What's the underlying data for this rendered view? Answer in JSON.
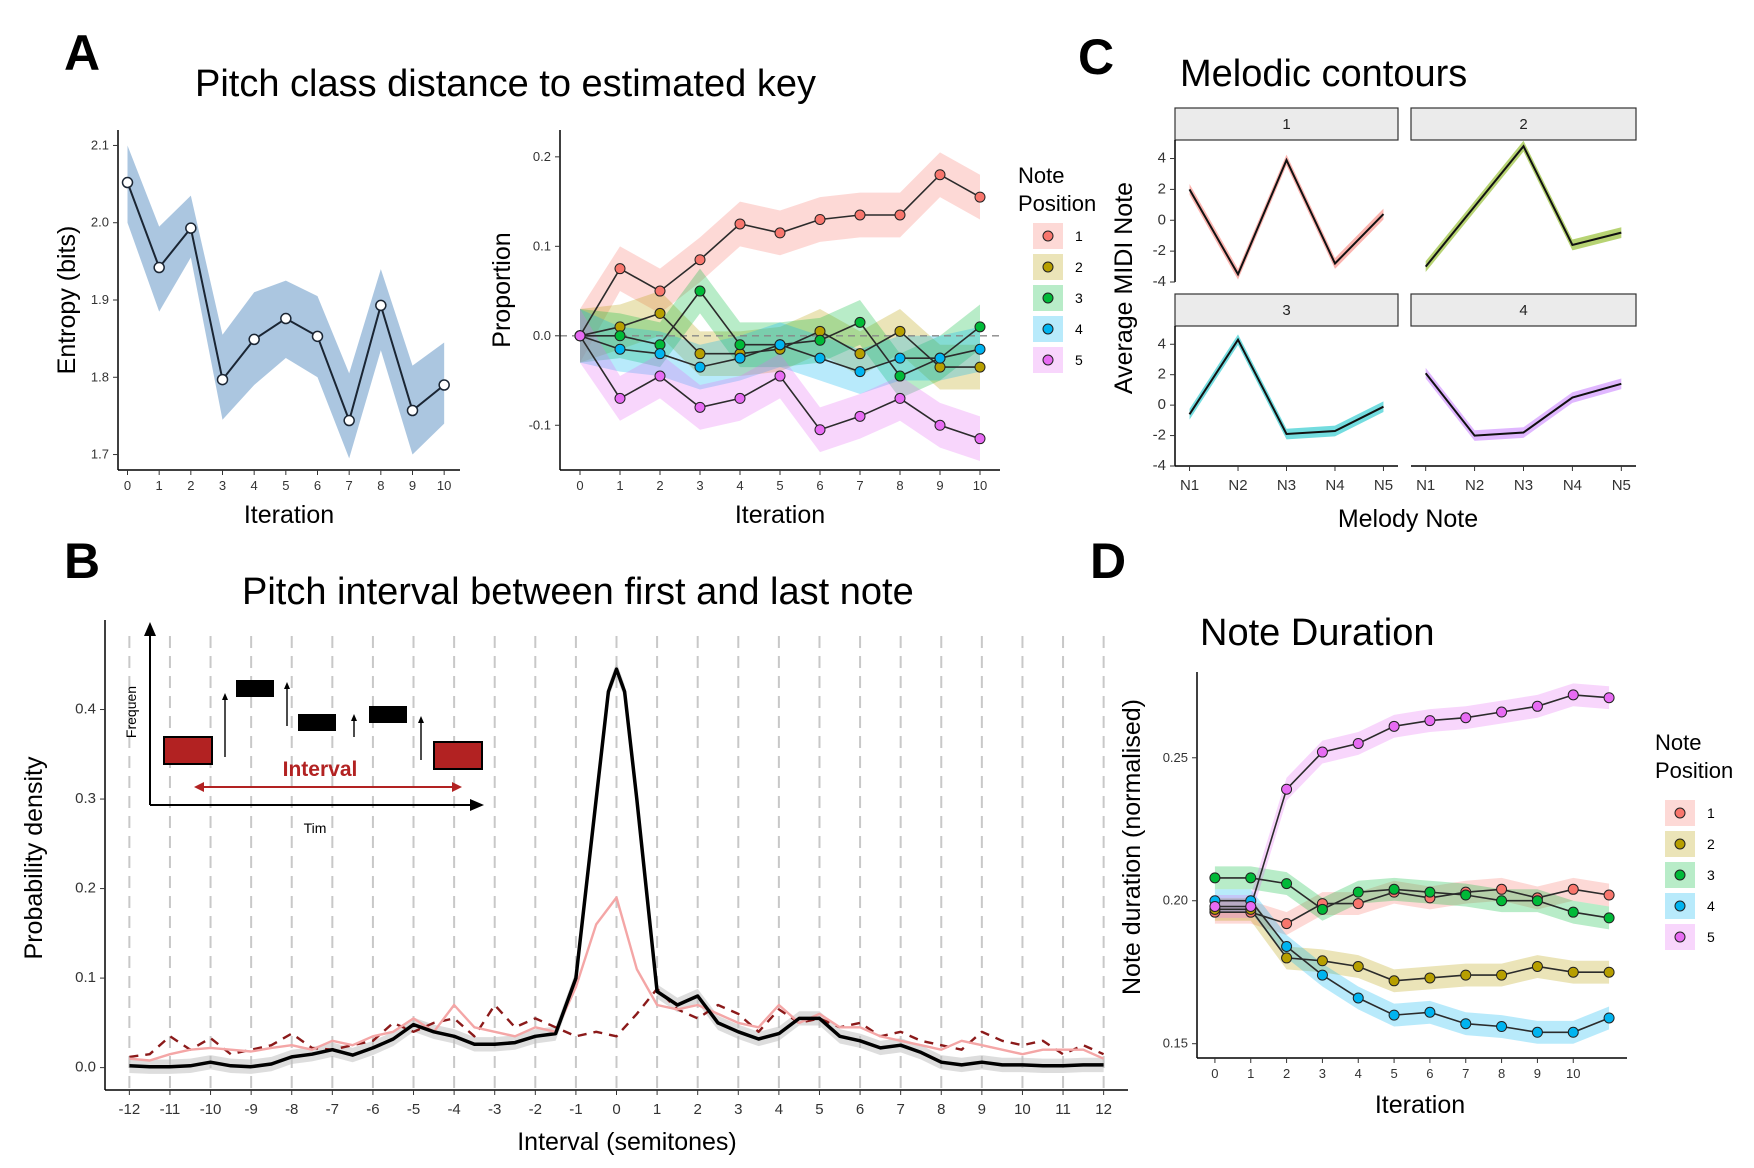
{
  "panels": {
    "A": {
      "letter": "A",
      "title": "Pitch class distance to estimated key"
    },
    "B": {
      "letter": "B",
      "title": "Pitch interval between first and last note"
    },
    "C": {
      "letter": "C",
      "title": "Melodic contours"
    },
    "D": {
      "letter": "D",
      "title": "Note Duration"
    }
  },
  "colors": {
    "pos1": "#F8766D",
    "pos2": "#B79F00",
    "pos3": "#00BA38",
    "pos4": "#00B4F0",
    "pos5": "#E76BF3",
    "entropy_band": "#8FB3D5",
    "dashed_red": "#8B1A1A",
    "pink": "#F4A6A6",
    "black": "#000000",
    "ribbon": "#9CD79B"
  },
  "chart_data": [
    {
      "id": "A-left",
      "type": "line",
      "xlabel": "Iteration",
      "ylabel": "Entropy (bits)",
      "x": [
        0,
        1,
        2,
        3,
        4,
        5,
        6,
        7,
        8,
        9,
        10
      ],
      "xticks": [
        "0",
        "1",
        "2",
        "3",
        "4",
        "5",
        "6",
        "7",
        "8",
        "9",
        "10"
      ],
      "yticks": [
        "1.7",
        "1.8",
        "1.9",
        "2.0",
        "2.1"
      ],
      "ylim": [
        1.68,
        2.12
      ],
      "series": [
        {
          "values": [
            2.052,
            1.942,
            1.993,
            1.797,
            1.849,
            1.876,
            1.853,
            1.744,
            1.893,
            1.757,
            1.79
          ],
          "lower": [
            2.0,
            1.885,
            1.955,
            1.745,
            1.79,
            1.825,
            1.8,
            1.695,
            1.835,
            1.7,
            1.74
          ],
          "upper": [
            2.1,
            1.995,
            2.035,
            1.855,
            1.91,
            1.925,
            1.905,
            1.805,
            1.94,
            1.815,
            1.845
          ]
        }
      ]
    },
    {
      "id": "A-right",
      "type": "line",
      "xlabel": "Iteration",
      "ylabel": "Proportion",
      "legend_title": [
        "Note",
        "Position"
      ],
      "legend_keys": [
        "1",
        "2",
        "3",
        "4",
        "5"
      ],
      "x": [
        0,
        1,
        2,
        3,
        4,
        5,
        6,
        7,
        8,
        9,
        10
      ],
      "xticks": [
        "0",
        "1",
        "2",
        "3",
        "4",
        "5",
        "6",
        "7",
        "8",
        "9",
        "10"
      ],
      "yticks": [
        "-0.1",
        "0.0",
        "0.1",
        "0.2"
      ],
      "ylim": [
        -0.15,
        0.23
      ],
      "band": 0.025,
      "series": [
        {
          "name": "1",
          "values": [
            0.0,
            0.075,
            0.05,
            0.085,
            0.125,
            0.115,
            0.13,
            0.135,
            0.135,
            0.18,
            0.155
          ]
        },
        {
          "name": "2",
          "values": [
            0.0,
            0.01,
            0.025,
            -0.02,
            -0.02,
            -0.015,
            0.005,
            -0.02,
            0.005,
            -0.035,
            -0.035
          ]
        },
        {
          "name": "3",
          "values": [
            0.0,
            0.0,
            -0.01,
            0.05,
            -0.01,
            -0.01,
            -0.005,
            0.015,
            -0.045,
            -0.025,
            0.01
          ]
        },
        {
          "name": "4",
          "values": [
            0.0,
            -0.015,
            -0.02,
            -0.035,
            -0.025,
            -0.01,
            -0.025,
            -0.04,
            -0.025,
            -0.025,
            -0.015
          ]
        },
        {
          "name": "5",
          "values": [
            0.0,
            -0.07,
            -0.045,
            -0.08,
            -0.07,
            -0.045,
            -0.105,
            -0.09,
            -0.07,
            -0.1,
            -0.115
          ]
        }
      ]
    },
    {
      "id": "B",
      "type": "line",
      "xlabel": "Interval (semitones)",
      "ylabel": "Probability density",
      "xlim": [
        -12.6,
        12.6
      ],
      "ylim": [
        -0.025,
        0.5
      ],
      "xticks": [
        "-12",
        "-11",
        "-10",
        "-9",
        "-8",
        "-7",
        "-6",
        "-5",
        "-4",
        "-3",
        "-2",
        "-1",
        "0",
        "1",
        "2",
        "3",
        "4",
        "5",
        "6",
        "7",
        "8",
        "9",
        "10",
        "11",
        "12"
      ],
      "yticks": [
        "0.0",
        "0.1",
        "0.2",
        "0.3",
        "0.4"
      ],
      "inset": {
        "ylabel": "Frequen",
        "xlabel": "Tim",
        "interval_label": "Interval"
      },
      "series": [
        {
          "style": "black",
          "x": [
            -12,
            -11.5,
            -11,
            -10.5,
            -10,
            -9.5,
            -9,
            -8.5,
            -8,
            -7.5,
            -7,
            -6.5,
            -6,
            -5.5,
            -5,
            -4.5,
            -4,
            -3.5,
            -3,
            -2.5,
            -2,
            -1.5,
            -1,
            -0.5,
            -0.2,
            0,
            0.2,
            0.5,
            1,
            1.5,
            2,
            2.5,
            3,
            3.5,
            4,
            4.5,
            5,
            5.5,
            6,
            6.5,
            7,
            7.5,
            8,
            8.5,
            9,
            9.5,
            10,
            10.5,
            11,
            11.5,
            12
          ],
          "values": [
            0.002,
            0.001,
            0.001,
            0.002,
            0.006,
            0.002,
            0.001,
            0.004,
            0.012,
            0.015,
            0.02,
            0.014,
            0.022,
            0.032,
            0.048,
            0.04,
            0.035,
            0.026,
            0.026,
            0.028,
            0.035,
            0.038,
            0.1,
            0.3,
            0.42,
            0.445,
            0.42,
            0.3,
            0.085,
            0.07,
            0.08,
            0.05,
            0.04,
            0.032,
            0.038,
            0.055,
            0.055,
            0.035,
            0.03,
            0.022,
            0.025,
            0.017,
            0.006,
            0.003,
            0.006,
            0.003,
            0.003,
            0.002,
            0.002,
            0.003,
            0.003
          ]
        },
        {
          "style": "pink",
          "x": [
            -12,
            -11.5,
            -11,
            -10.5,
            -10,
            -9.5,
            -9,
            -8.5,
            -8,
            -7.5,
            -7,
            -6.5,
            -6,
            -5.5,
            -5,
            -4.5,
            -4,
            -3.5,
            -3,
            -2.5,
            -2,
            -1.5,
            -1,
            -0.5,
            0,
            0.5,
            1,
            1.5,
            2,
            2.5,
            3,
            3.5,
            4,
            4.5,
            5,
            5.5,
            6,
            6.5,
            7,
            7.5,
            8,
            8.5,
            9,
            9.5,
            10,
            10.5,
            11,
            11.5,
            12
          ],
          "values": [
            0.01,
            0.008,
            0.015,
            0.02,
            0.022,
            0.02,
            0.018,
            0.022,
            0.025,
            0.02,
            0.03,
            0.025,
            0.035,
            0.04,
            0.055,
            0.04,
            0.07,
            0.045,
            0.04,
            0.035,
            0.045,
            0.04,
            0.09,
            0.16,
            0.19,
            0.11,
            0.07,
            0.065,
            0.07,
            0.06,
            0.05,
            0.045,
            0.07,
            0.05,
            0.06,
            0.045,
            0.045,
            0.035,
            0.03,
            0.025,
            0.02,
            0.03,
            0.025,
            0.02,
            0.015,
            0.02,
            0.02,
            0.02,
            0.01
          ]
        },
        {
          "style": "dashed",
          "x": [
            -12,
            -11.5,
            -11,
            -10.5,
            -10,
            -9.5,
            -9,
            -8.5,
            -8,
            -7.5,
            -7,
            -6.5,
            -6,
            -5.5,
            -5,
            -4.5,
            -4,
            -3.5,
            -3,
            -2.5,
            -2,
            -1.5,
            -1,
            -0.5,
            0,
            0.5,
            1,
            1.5,
            2,
            2.5,
            3,
            3.5,
            4,
            4.5,
            5,
            5.5,
            6,
            6.5,
            7,
            7.5,
            8,
            8.5,
            9,
            9.5,
            10,
            10.5,
            11,
            11.5,
            12
          ],
          "values": [
            0.012,
            0.015,
            0.035,
            0.02,
            0.033,
            0.015,
            0.02,
            0.025,
            0.038,
            0.022,
            0.02,
            0.025,
            0.03,
            0.05,
            0.04,
            0.05,
            0.055,
            0.035,
            0.07,
            0.045,
            0.055,
            0.045,
            0.035,
            0.04,
            0.035,
            0.06,
            0.088,
            0.065,
            0.055,
            0.07,
            0.06,
            0.04,
            0.065,
            0.05,
            0.055,
            0.045,
            0.05,
            0.035,
            0.04,
            0.03,
            0.025,
            0.02,
            0.04,
            0.03,
            0.025,
            0.03,
            0.015,
            0.025,
            0.015
          ]
        }
      ]
    },
    {
      "id": "C",
      "type": "line",
      "xlabel": "Melody Note",
      "ylabel": "Average MIDI Note",
      "categories": [
        "N1",
        "N2",
        "N3",
        "N4",
        "N5"
      ],
      "yticks": [
        "-4",
        "-2",
        "0",
        "2",
        "4"
      ],
      "ylim": [
        -4,
        5.2
      ],
      "facets": [
        {
          "label": "1",
          "color": "#F8766D",
          "values": [
            2.0,
            -3.5,
            3.9,
            -2.8,
            0.4
          ]
        },
        {
          "label": "2",
          "color": "#7CAE00",
          "values": [
            -3.0,
            0.9,
            4.8,
            -1.6,
            -0.8
          ]
        },
        {
          "label": "3",
          "color": "#00BFC4",
          "values": [
            -0.6,
            4.3,
            -1.9,
            -1.7,
            -0.1
          ]
        },
        {
          "label": "4",
          "color": "#C77CFF",
          "values": [
            2.1,
            -2.0,
            -1.8,
            0.5,
            1.4
          ]
        }
      ]
    },
    {
      "id": "D",
      "type": "line",
      "xlabel": "Iteration",
      "ylabel": "Note duration (normalised)",
      "legend_title": [
        "Note",
        "Position"
      ],
      "legend_keys": [
        "1",
        "2",
        "3",
        "4",
        "5"
      ],
      "x": [
        0,
        1,
        2,
        3,
        4,
        5,
        6,
        7,
        8,
        9,
        10,
        11
      ],
      "xticks": [
        "0",
        "1",
        "2",
        "3",
        "4",
        "5",
        "6",
        "7",
        "8",
        "9",
        "10"
      ],
      "yticks": [
        "0.15",
        "0.20",
        "0.25"
      ],
      "ylim": [
        0.145,
        0.28
      ],
      "band": 0.004,
      "series": [
        {
          "name": "1",
          "values": [
            0.196,
            0.196,
            0.192,
            0.199,
            0.199,
            0.203,
            0.201,
            0.203,
            0.204,
            0.201,
            0.204,
            0.202
          ]
        },
        {
          "name": "2",
          "values": [
            0.197,
            0.197,
            0.18,
            0.179,
            0.177,
            0.172,
            0.173,
            0.174,
            0.174,
            0.177,
            0.175,
            0.175
          ]
        },
        {
          "name": "3",
          "values": [
            0.208,
            0.208,
            0.206,
            0.197,
            0.203,
            0.204,
            0.203,
            0.202,
            0.2,
            0.2,
            0.196,
            0.194
          ]
        },
        {
          "name": "4",
          "values": [
            0.2,
            0.2,
            0.184,
            0.174,
            0.166,
            0.16,
            0.161,
            0.157,
            0.156,
            0.154,
            0.154,
            0.159
          ]
        },
        {
          "name": "5",
          "values": [
            0.198,
            0.198,
            0.239,
            0.252,
            0.255,
            0.261,
            0.263,
            0.264,
            0.266,
            0.268,
            0.272,
            0.271
          ]
        }
      ]
    }
  ]
}
